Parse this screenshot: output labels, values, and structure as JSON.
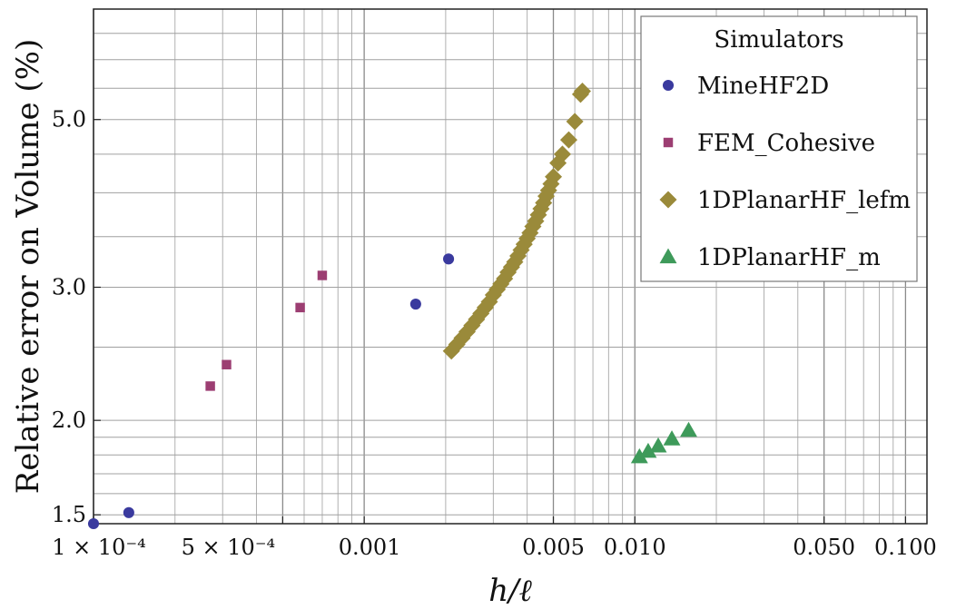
{
  "chart_data": {
    "type": "scatter",
    "xscale": "log",
    "yscale": "log",
    "xlabel": "h/ℓ",
    "ylabel": "Relative error on Volume (%)",
    "xlim": [
      0.0001,
      0.12
    ],
    "ylim": [
      1.46,
      7.0
    ],
    "grid": true,
    "xticks": [
      {
        "value": 0.0001,
        "label": "1 × 10⁻⁴"
      },
      {
        "value": 0.0005,
        "label": "5 × 10⁻⁴"
      },
      {
        "value": 0.001,
        "label": "0.001"
      },
      {
        "value": 0.005,
        "label": "0.005"
      },
      {
        "value": 0.01,
        "label": "0.010"
      },
      {
        "value": 0.05,
        "label": "0.050"
      },
      {
        "value": 0.1,
        "label": "0.100"
      }
    ],
    "yticks": [
      {
        "value": 1.5,
        "label": "1.5"
      },
      {
        "value": 2.0,
        "label": "2.0"
      },
      {
        "value": 3.0,
        "label": "3.0"
      },
      {
        "value": 5.0,
        "label": "5.0"
      }
    ],
    "legend": {
      "title": "Simulators",
      "placement": "top-right"
    },
    "series": [
      {
        "name": "MineHF2D",
        "marker": "circle",
        "color": "#3a3a9e",
        "points": [
          [
            0.0001,
            1.46
          ],
          [
            0.000135,
            1.51
          ],
          [
            0.00155,
            2.85
          ],
          [
            0.00205,
            3.27
          ]
        ]
      },
      {
        "name": "FEM_Cohesive",
        "marker": "square",
        "color": "#9c3e72",
        "points": [
          [
            0.00027,
            2.22
          ],
          [
            0.00031,
            2.37
          ],
          [
            0.00058,
            2.82
          ],
          [
            0.0007,
            3.11
          ]
        ]
      },
      {
        "name": "1DPlanarHF_lefm",
        "marker": "diamond",
        "color": "#9a8a3a",
        "points": [
          [
            0.0021,
            2.47
          ],
          [
            0.0022,
            2.52
          ],
          [
            0.0023,
            2.57
          ],
          [
            0.0024,
            2.62
          ],
          [
            0.0025,
            2.67
          ],
          [
            0.0026,
            2.72
          ],
          [
            0.0027,
            2.77
          ],
          [
            0.0028,
            2.82
          ],
          [
            0.0029,
            2.87
          ],
          [
            0.003,
            2.93
          ],
          [
            0.0031,
            2.98
          ],
          [
            0.0032,
            3.03
          ],
          [
            0.0033,
            3.08
          ],
          [
            0.0034,
            3.14
          ],
          [
            0.0035,
            3.19
          ],
          [
            0.0036,
            3.24
          ],
          [
            0.0037,
            3.3
          ],
          [
            0.0038,
            3.36
          ],
          [
            0.0039,
            3.42
          ],
          [
            0.004,
            3.48
          ],
          [
            0.0041,
            3.54
          ],
          [
            0.0042,
            3.61
          ],
          [
            0.0043,
            3.67
          ],
          [
            0.0044,
            3.74
          ],
          [
            0.0045,
            3.81
          ],
          [
            0.0046,
            3.88
          ],
          [
            0.0047,
            3.96
          ],
          [
            0.0048,
            4.03
          ],
          [
            0.0049,
            4.11
          ],
          [
            0.005,
            4.2
          ],
          [
            0.0052,
            4.38
          ],
          [
            0.0054,
            4.5
          ],
          [
            0.0057,
            4.7
          ],
          [
            0.006,
            4.97
          ],
          [
            0.0063,
            5.4
          ],
          [
            0.0064,
            5.45
          ]
        ]
      },
      {
        "name": "1DPlanarHF_m",
        "marker": "triangle",
        "color": "#3e9a5a",
        "points": [
          [
            0.0104,
            1.79
          ],
          [
            0.0112,
            1.82
          ],
          [
            0.0122,
            1.85
          ],
          [
            0.0137,
            1.89
          ],
          [
            0.0158,
            1.94
          ]
        ]
      }
    ]
  }
}
